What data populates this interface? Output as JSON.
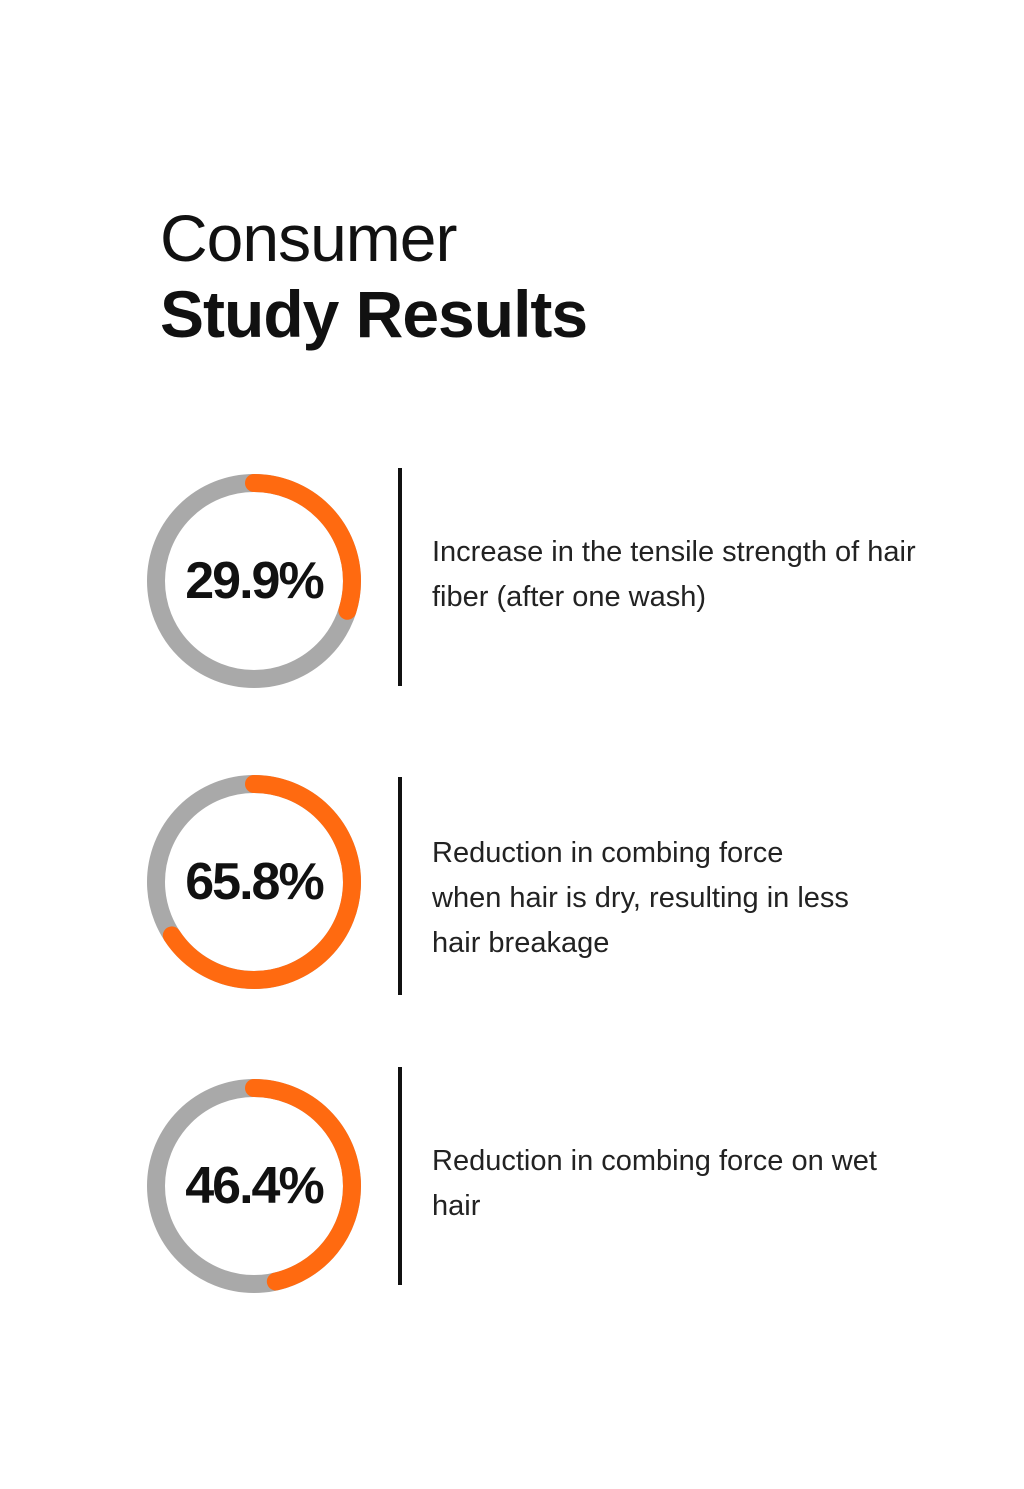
{
  "heading": {
    "line1": "Consumer",
    "line2": "Study Results"
  },
  "colors": {
    "accent": "#FF6A10",
    "track": "#A9A9A9",
    "text": "#111111"
  },
  "stats": [
    {
      "value": "29.9%",
      "percent": 29.9,
      "description": "Increase in the tensile strength of hair fiber (after one wash)"
    },
    {
      "value": "65.8%",
      "percent": 65.8,
      "description": "Reduction in combing force when hair is dry, resulting in less hair breakage"
    },
    {
      "value": "46.4%",
      "percent": 46.4,
      "description": "Reduction in combing force on wet hair"
    }
  ]
}
